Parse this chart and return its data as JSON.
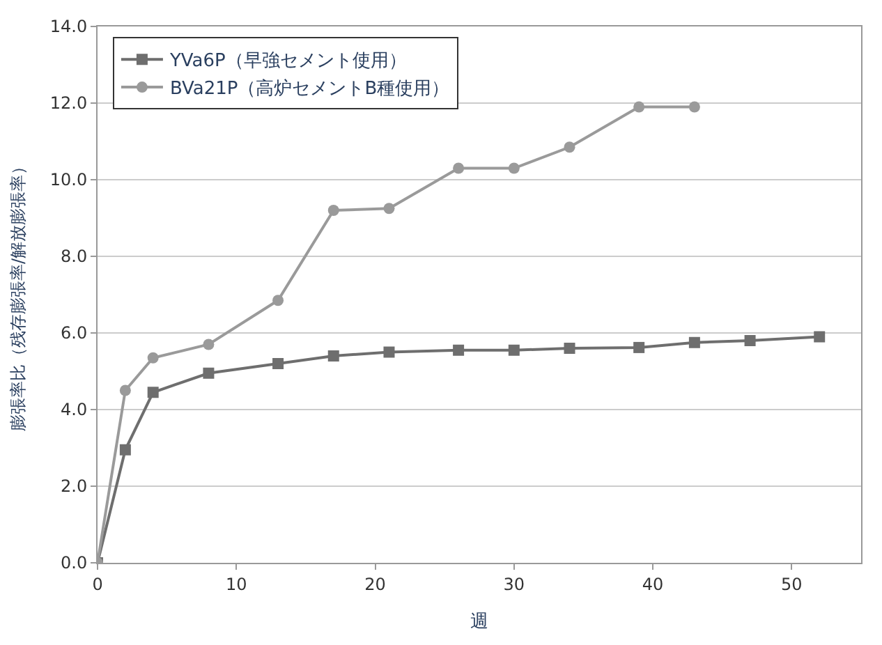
{
  "chart_data": {
    "type": "line",
    "xlabel": "週",
    "ylabel": "膨張率比（残存膨張率/解放膨張率）",
    "xlim": [
      0,
      55
    ],
    "xticks": [
      0,
      10,
      20,
      30,
      40,
      50
    ],
    "ylim": [
      0,
      14
    ],
    "yticks": [
      {
        "value": 0,
        "label": "0.0"
      },
      {
        "value": 2,
        "label": "2.0"
      },
      {
        "value": 4,
        "label": "4.0"
      },
      {
        "value": 6,
        "label": "6.0"
      },
      {
        "value": 8,
        "label": "8.0"
      },
      {
        "value": 10,
        "label": "10.0"
      },
      {
        "value": 12,
        "label": "12.0"
      },
      {
        "value": 14,
        "label": "14.0"
      }
    ],
    "grid": "y",
    "legend": "top left",
    "series": [
      {
        "name": "YVa6P（早強セメント使用）",
        "color": "#6e6e6e",
        "marker": "square",
        "x": [
          0,
          2,
          4,
          8,
          13,
          17,
          21,
          26,
          30,
          34,
          39,
          43,
          47,
          52
        ],
        "values": [
          0,
          2.95,
          4.45,
          4.95,
          5.2,
          5.4,
          5.5,
          5.55,
          5.55,
          5.6,
          5.62,
          5.75,
          5.8,
          5.9
        ]
      },
      {
        "name": "BVa21P（高炉セメントB種使用）",
        "color": "#9a9a9a",
        "marker": "circle",
        "x": [
          0,
          2,
          4,
          8,
          13,
          17,
          21,
          26,
          30,
          34,
          39,
          43
        ],
        "values": [
          0,
          4.5,
          5.35,
          5.7,
          6.85,
          9.2,
          9.25,
          10.3,
          10.3,
          10.85,
          11.9,
          11.9
        ]
      }
    ]
  }
}
